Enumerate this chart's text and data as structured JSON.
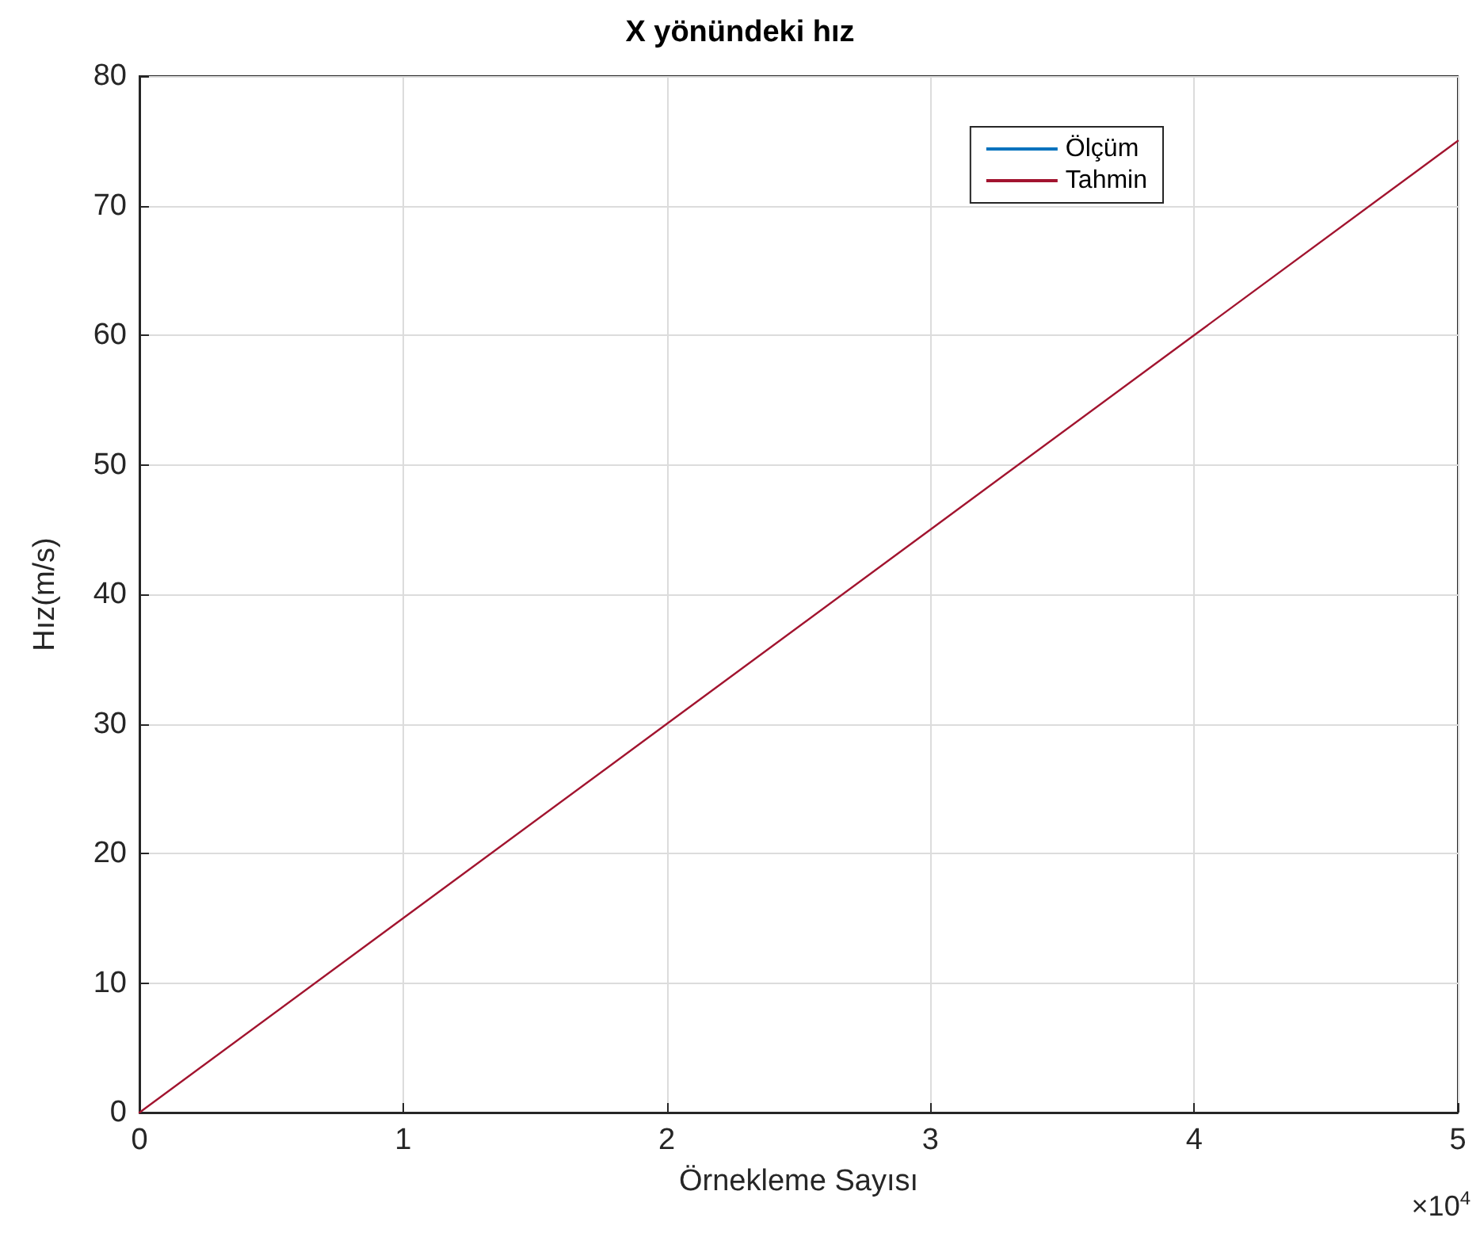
{
  "chart_data": {
    "type": "line",
    "title": "X yönündeki hız",
    "xlabel": "Örnekleme Sayısı",
    "ylabel": "Hız(m/s)",
    "x": [
      0,
      1,
      2,
      3,
      4,
      5
    ],
    "series": [
      {
        "name": "Ölçüm",
        "color": "#0072bd",
        "values": [
          null,
          null,
          null,
          null,
          null,
          null
        ]
      },
      {
        "name": "Tahmin",
        "color": "#a2142f",
        "values": [
          0,
          15,
          30,
          45,
          60,
          75
        ]
      }
    ],
    "xlim": [
      0,
      5
    ],
    "xticks": [
      0,
      1,
      2,
      3,
      4,
      5
    ],
    "ylim": [
      0,
      80
    ],
    "yticks": [
      0,
      10,
      20,
      30,
      40,
      50,
      60,
      70,
      80
    ],
    "annotations": [
      "×10$^{4}$"
    ],
    "grid": true,
    "legend": "top right",
    "marker": "none",
    "line_style": "solid"
  }
}
